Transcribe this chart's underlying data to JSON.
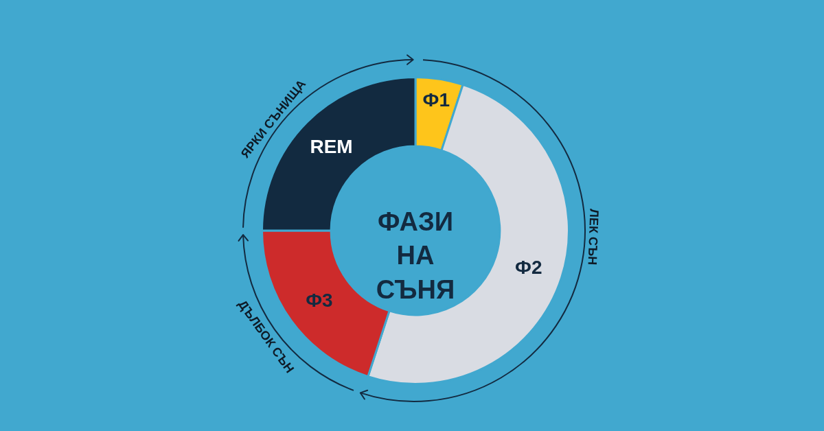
{
  "chart_data": {
    "type": "donut",
    "title": "ФАЗИ НА СЪНЯ",
    "categories": [
      "Ф1",
      "Ф2",
      "Ф3",
      "REM"
    ],
    "values": [
      5,
      50,
      20,
      25
    ],
    "colors": [
      "#fec51b",
      "#d9dce3",
      "#cd2b2b",
      "#122a40"
    ],
    "annotations": [
      "ЯРКИ СЪНИЩА",
      "ЛЕК СЪН",
      "ДЪЛБОК СЪН"
    ]
  }
}
